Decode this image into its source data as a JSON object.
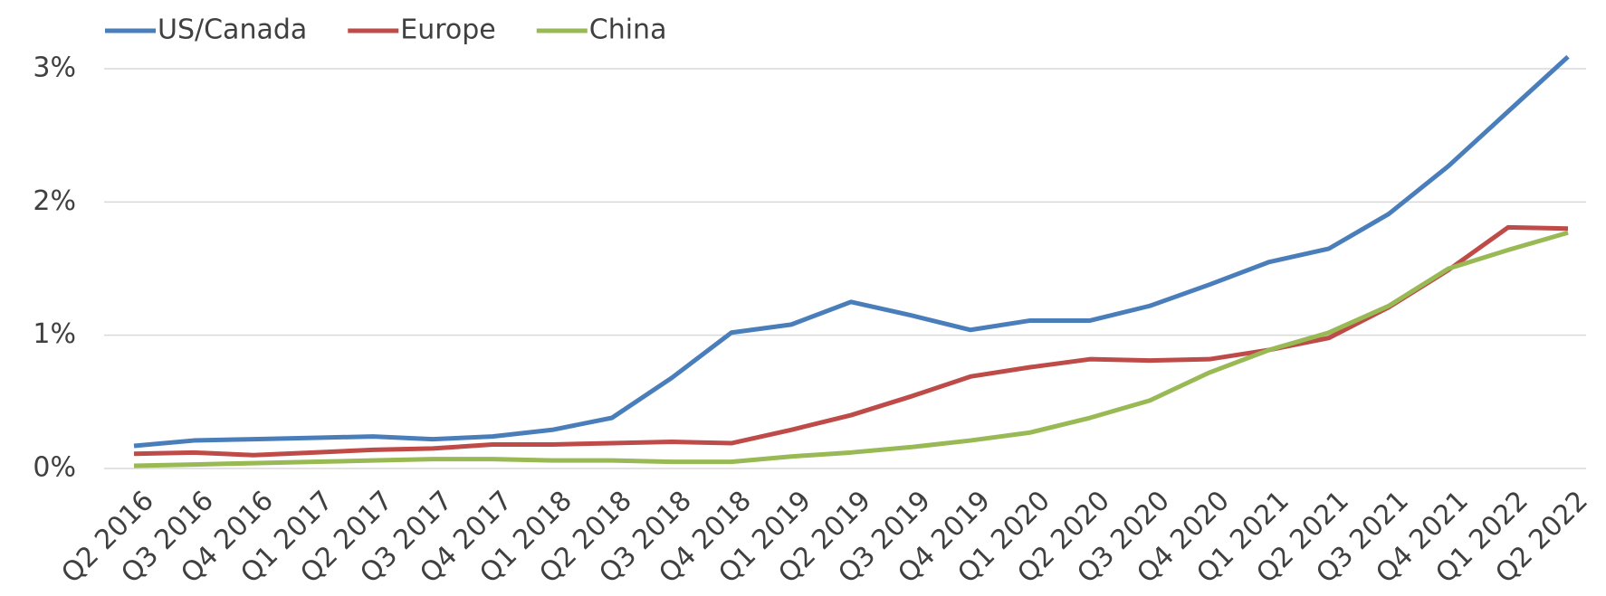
{
  "chart_data": {
    "type": "line",
    "categories": [
      "Q2 2016",
      "Q3 2016",
      "Q4 2016",
      "Q1 2017",
      "Q2 2017",
      "Q3 2017",
      "Q4 2017",
      "Q1 2018",
      "Q2 2018",
      "Q3 2018",
      "Q4 2018",
      "Q1 2019",
      "Q2 2019",
      "Q3 2019",
      "Q4 2019",
      "Q1 2020",
      "Q2 2020",
      "Q3 2020",
      "Q4 2020",
      "Q1 2021",
      "Q2 2021",
      "Q3 2021",
      "Q4 2021",
      "Q1 2022",
      "Q2 2022"
    ],
    "series": [
      {
        "name": "US/Canada",
        "color": "#4a7ebb",
        "values": [
          0.17,
          0.21,
          0.22,
          0.23,
          0.24,
          0.22,
          0.24,
          0.29,
          0.38,
          0.68,
          1.02,
          1.08,
          1.25,
          1.15,
          1.04,
          1.11,
          1.11,
          1.22,
          1.38,
          1.55,
          1.65,
          1.91,
          2.27,
          2.68,
          3.09
        ]
      },
      {
        "name": "Europe",
        "color": "#be4b48",
        "values": [
          0.11,
          0.12,
          0.1,
          0.12,
          0.14,
          0.15,
          0.18,
          0.18,
          0.19,
          0.2,
          0.19,
          0.29,
          0.4,
          0.54,
          0.69,
          0.76,
          0.82,
          0.81,
          0.82,
          0.89,
          0.98,
          1.21,
          1.49,
          1.81,
          1.8
        ]
      },
      {
        "name": "China",
        "color": "#98b954",
        "values": [
          0.02,
          0.03,
          0.04,
          0.05,
          0.06,
          0.07,
          0.07,
          0.06,
          0.06,
          0.05,
          0.05,
          0.09,
          0.12,
          0.16,
          0.21,
          0.27,
          0.38,
          0.51,
          0.72,
          0.89,
          1.02,
          1.22,
          1.5,
          1.64,
          1.77
        ]
      }
    ],
    "ylim": [
      0,
      3.5
    ],
    "yticks": [
      {
        "value": 0,
        "label": "0%"
      },
      {
        "value": 1,
        "label": "1%"
      },
      {
        "value": 2,
        "label": "2%"
      },
      {
        "value": 3,
        "label": "3%"
      }
    ],
    "grid": true,
    "legend": "top-left"
  }
}
